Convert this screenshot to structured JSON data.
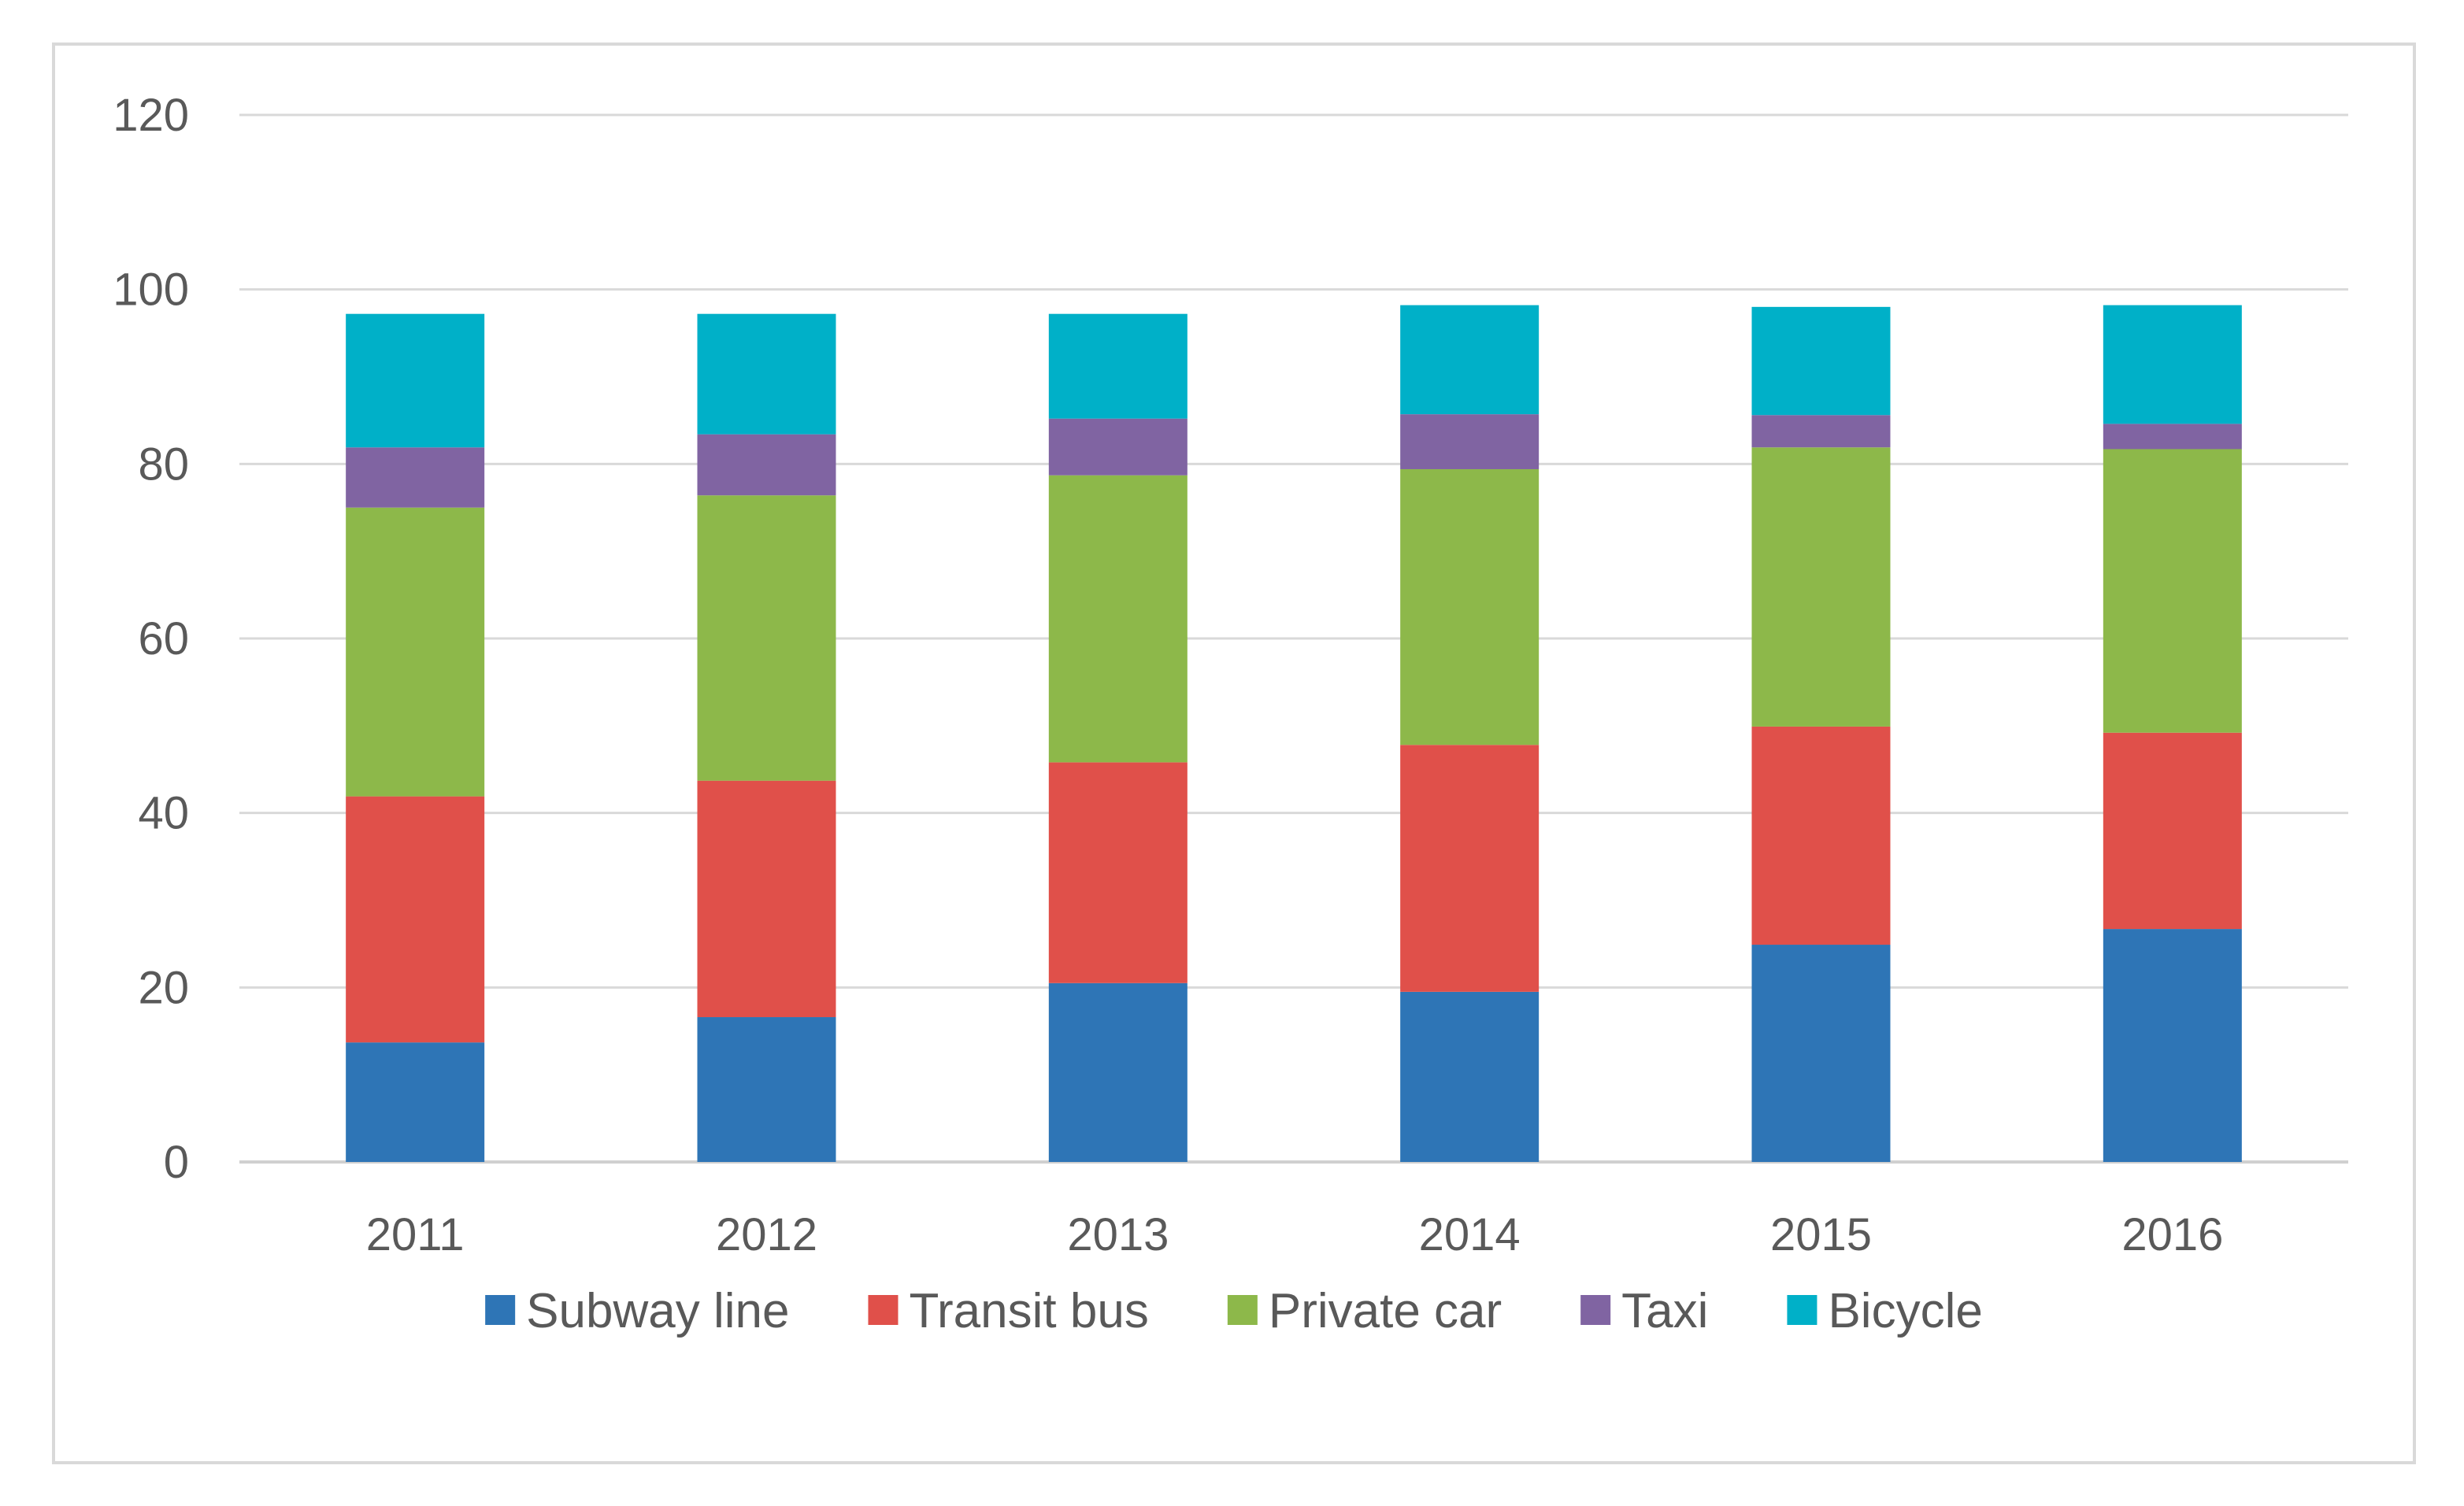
{
  "chart_data": {
    "type": "bar",
    "stacked": true,
    "title": "",
    "xlabel": "",
    "ylabel": "",
    "ylim": [
      0,
      120
    ],
    "ytick_step": 20,
    "grid": true,
    "legend_position": "bottom",
    "categories": [
      "2011",
      "2012",
      "2013",
      "2014",
      "2015",
      "2016"
    ],
    "series": [
      {
        "name": "Subway line",
        "color": "#2e75b6",
        "values": [
          13.7,
          16.6,
          20.5,
          19.5,
          24.9,
          26.7
        ]
      },
      {
        "name": "Transit bus",
        "color": "#e0504a",
        "values": [
          28.2,
          27.1,
          25.3,
          28.3,
          25.0,
          22.5
        ]
      },
      {
        "name": "Private car",
        "color": "#8db84a",
        "values": [
          33.1,
          32.7,
          32.9,
          31.6,
          32.0,
          32.5
        ]
      },
      {
        "name": "Taxi",
        "color": "#8064a2",
        "values": [
          6.9,
          7.0,
          6.5,
          6.3,
          3.7,
          2.9
        ]
      },
      {
        "name": "Bicycle",
        "color": "#00b0c8",
        "values": [
          15.3,
          13.8,
          12.0,
          12.5,
          12.4,
          13.6
        ]
      }
    ]
  }
}
